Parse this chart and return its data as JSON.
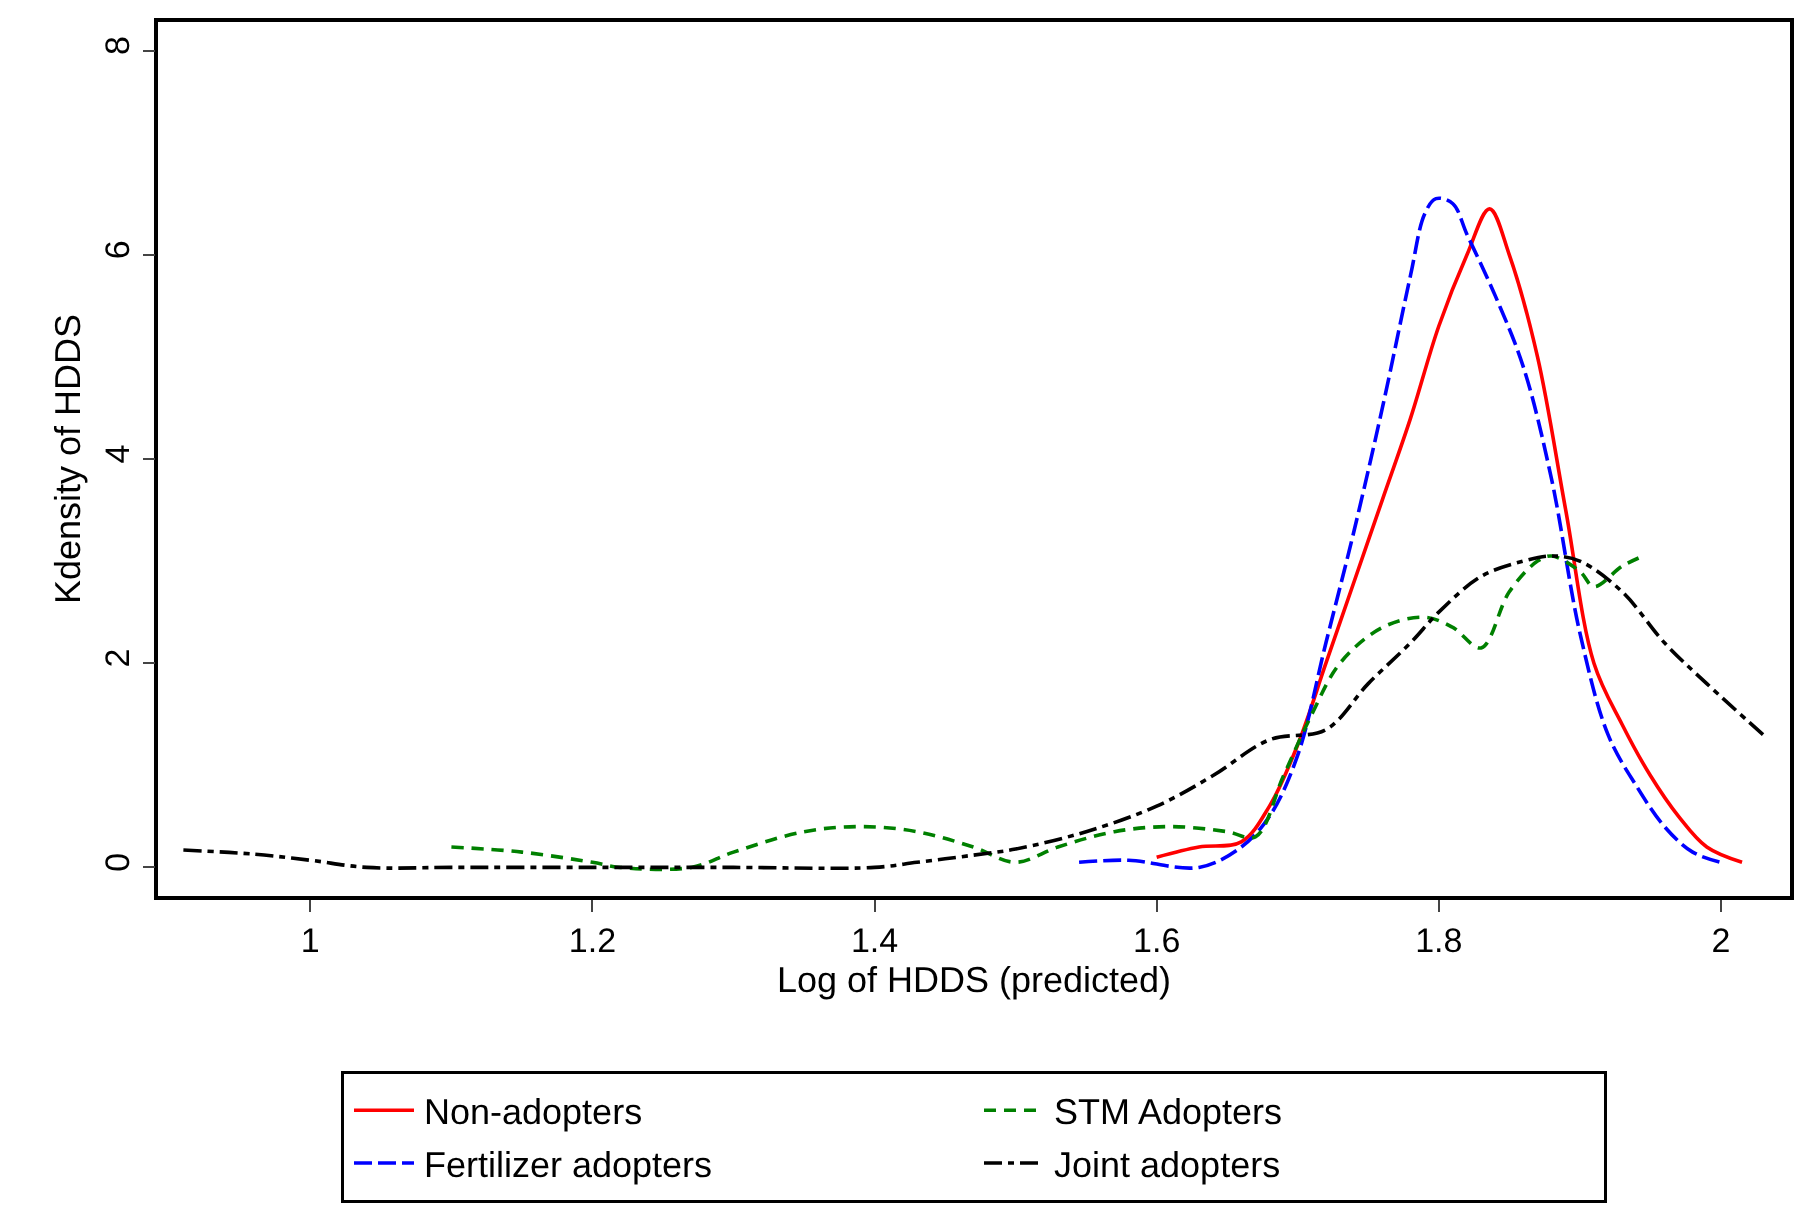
{
  "chart_data": {
    "type": "line",
    "xlabel": "Log of HDDS (predicted)",
    "ylabel": "Kdensity of HDDS",
    "xlim": [
      0.892,
      2.049
    ],
    "ylim": [
      -0.28,
      8.28
    ],
    "xticks": [
      1,
      1.2,
      1.4,
      1.6,
      1.8,
      2
    ],
    "yticks": [
      0,
      2,
      4,
      6,
      8
    ],
    "legend": "bottom",
    "marker": "none",
    "series": [
      {
        "name": "Non-adopters",
        "color": "#ff0000",
        "line_style": "solid",
        "x": [
          1.6,
          1.63,
          1.66,
          1.68,
          1.7,
          1.72,
          1.74,
          1.76,
          1.78,
          1.8,
          1.82,
          1.836,
          1.85,
          1.87,
          1.89,
          1.91,
          1.93,
          1.95,
          1.97,
          1.99,
          2.015
        ],
        "values": [
          0.1,
          0.2,
          0.25,
          0.6,
          1.2,
          2.0,
          2.8,
          3.6,
          4.4,
          5.3,
          6.0,
          6.45,
          6.0,
          5.0,
          3.5,
          2.0,
          1.4,
          0.9,
          0.5,
          0.2,
          0.05
        ]
      },
      {
        "name": "Fertilizer adopters",
        "color": "#0000ff",
        "line_style": "longdash",
        "x": [
          1.545,
          1.58,
          1.63,
          1.66,
          1.68,
          1.7,
          1.72,
          1.74,
          1.76,
          1.78,
          1.79,
          1.798,
          1.81,
          1.82,
          1.84,
          1.86,
          1.88,
          1.9,
          1.92,
          1.94,
          1.96,
          1.98,
          2.0
        ],
        "values": [
          0.05,
          0.07,
          0.0,
          0.2,
          0.5,
          1.1,
          2.2,
          3.3,
          4.5,
          5.8,
          6.4,
          6.55,
          6.5,
          6.2,
          5.6,
          4.9,
          3.8,
          2.3,
          1.3,
          0.8,
          0.4,
          0.15,
          0.05
        ]
      },
      {
        "name": "STM Adopters",
        "color": "#008000",
        "line_style": "dashed",
        "x": [
          1.1,
          1.15,
          1.2,
          1.22,
          1.27,
          1.3,
          1.35,
          1.39,
          1.43,
          1.47,
          1.5,
          1.53,
          1.57,
          1.61,
          1.65,
          1.67,
          1.69,
          1.71,
          1.73,
          1.76,
          1.79,
          1.81,
          1.83,
          1.85,
          1.87,
          1.88,
          1.9,
          1.91,
          1.93,
          1.945
        ],
        "values": [
          0.2,
          0.15,
          0.05,
          0,
          0,
          0.15,
          0.35,
          0.4,
          0.35,
          0.2,
          0.05,
          0.2,
          0.35,
          0.4,
          0.35,
          0.3,
          0.9,
          1.5,
          2.0,
          2.35,
          2.45,
          2.35,
          2.15,
          2.7,
          3.0,
          3.05,
          2.9,
          2.75,
          2.95,
          3.05
        ]
      },
      {
        "name": "Joint adopters",
        "color": "#000000",
        "line_style": "dashdot",
        "x": [
          0.91,
          0.96,
          1.0,
          1.04,
          1.1,
          1.2,
          1.3,
          1.4,
          1.43,
          1.47,
          1.5,
          1.55,
          1.6,
          1.64,
          1.68,
          1.72,
          1.75,
          1.78,
          1.8,
          1.83,
          1.86,
          1.88,
          1.9,
          1.93,
          1.96,
          1.99,
          2.03
        ],
        "values": [
          0.17,
          0.13,
          0.07,
          0,
          0,
          0,
          0,
          0,
          0.05,
          0.12,
          0.18,
          0.35,
          0.6,
          0.9,
          1.25,
          1.35,
          1.8,
          2.2,
          2.5,
          2.85,
          3.0,
          3.05,
          3.0,
          2.7,
          2.2,
          1.8,
          1.3
        ]
      }
    ]
  }
}
